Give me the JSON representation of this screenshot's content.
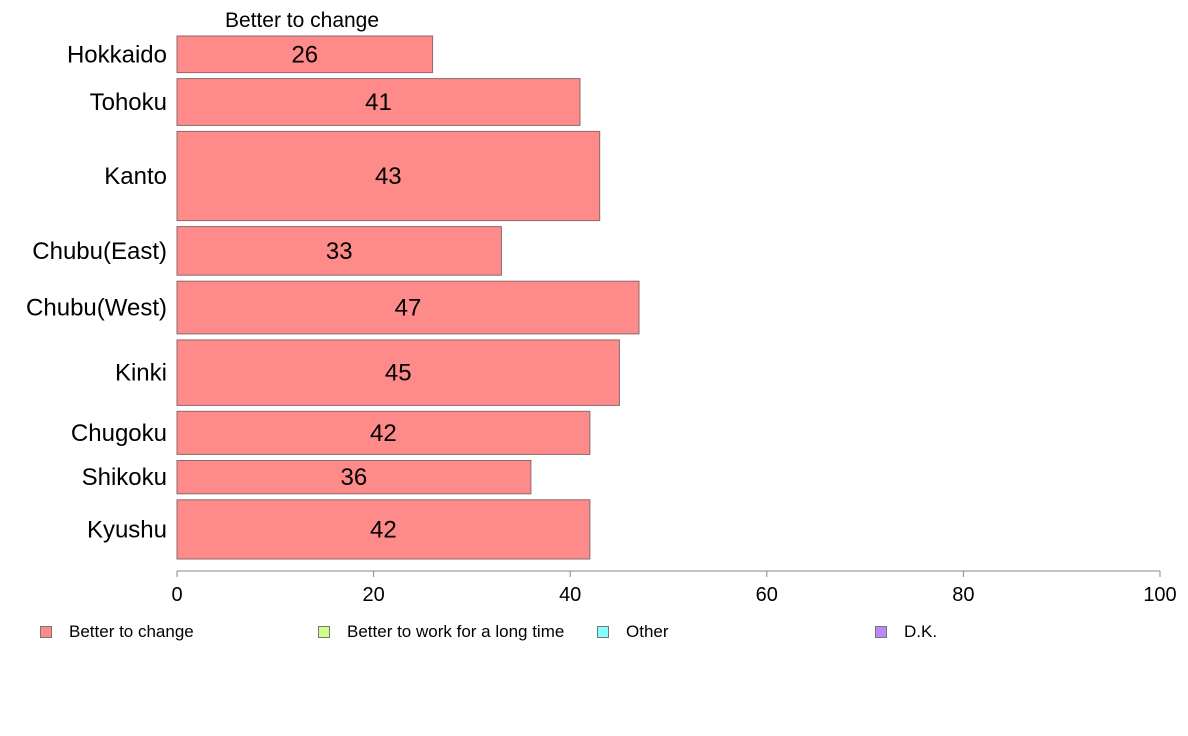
{
  "chart_data": {
    "type": "bar",
    "orientation": "horizontal",
    "column_header": "Better to change",
    "categories": [
      "Hokkaido",
      "Tohoku",
      "Kanto",
      "Chubu(East)",
      "Chubu(West)",
      "Kinki",
      "Chugoku",
      "Shikoku",
      "Kyushu"
    ],
    "series": [
      {
        "name": "Better to change",
        "color": "#ff8a8a",
        "values": [
          26,
          41,
          43,
          33,
          47,
          45,
          42,
          36,
          42
        ],
        "labels": [
          "26",
          "41",
          "43",
          "33",
          "47",
          "45",
          "42",
          "36",
          "42"
        ]
      }
    ],
    "relative_weights": [
      1.0,
      1.28,
      2.44,
      1.33,
      1.44,
      1.79,
      1.18,
      0.91,
      1.62
    ],
    "xlim": [
      0,
      100
    ],
    "xticks": [
      "0",
      "20",
      "40",
      "60",
      "80",
      "100"
    ],
    "grid": false,
    "legend_position": "bottom",
    "legend": [
      {
        "label": "Better to change",
        "color": "#ff8a8a"
      },
      {
        "label": "Better to work for a long time",
        "color": "#ccff88"
      },
      {
        "label": "Other",
        "color": "#88ffff"
      },
      {
        "label": "D.K.",
        "color": "#bb88ff"
      }
    ]
  }
}
